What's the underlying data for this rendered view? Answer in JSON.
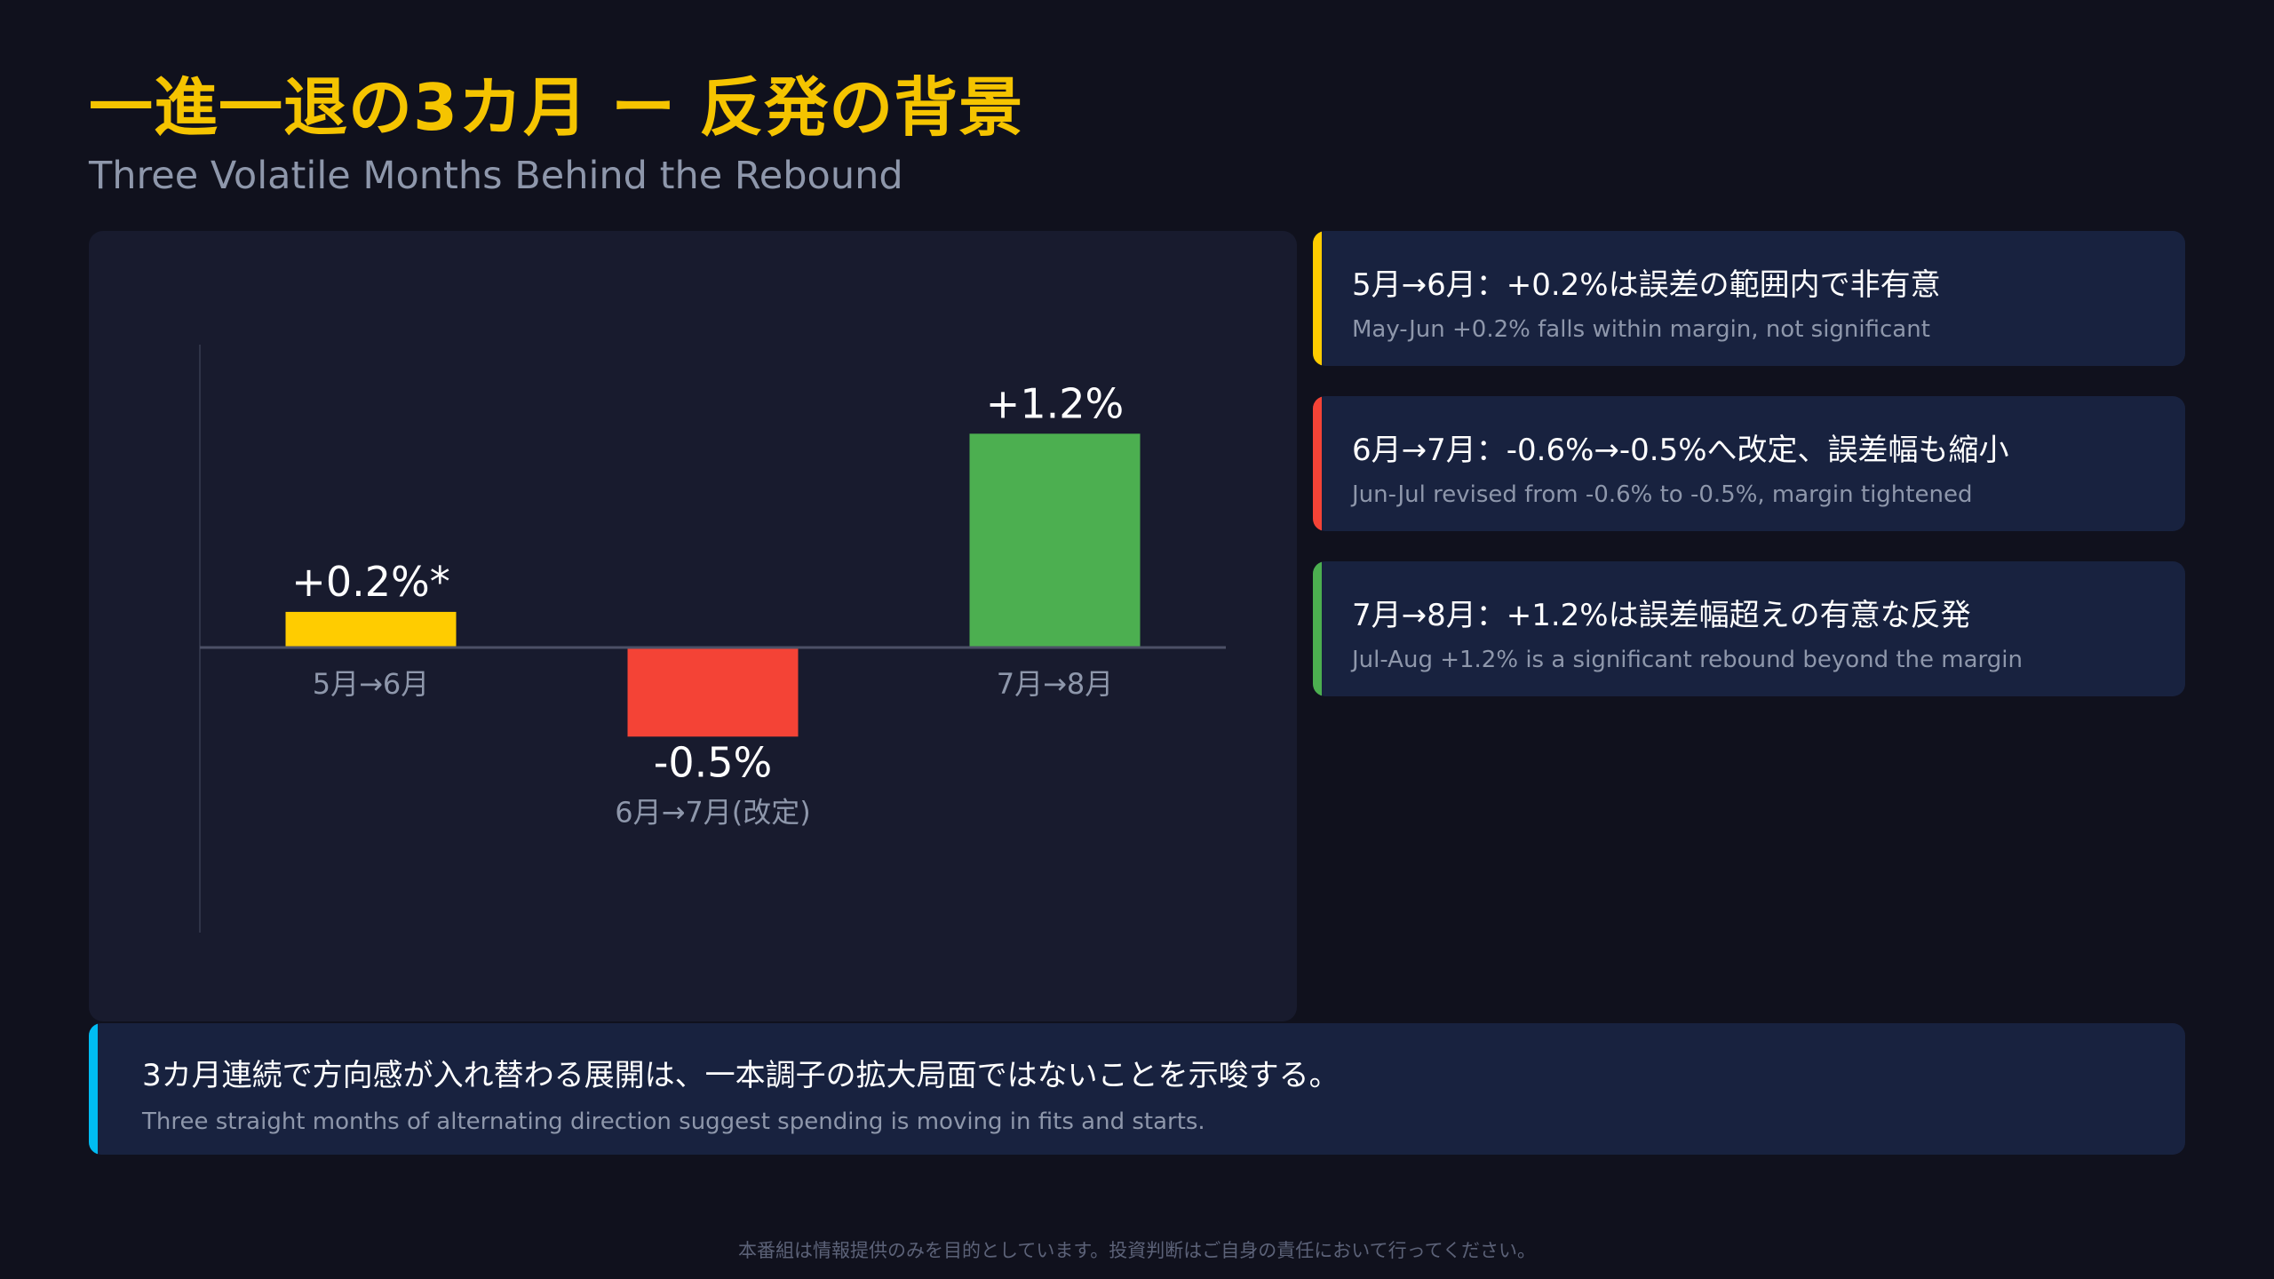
{
  "title": "一進一退の3カ月 ー 反発の背景",
  "subtitle": "Three Volatile Months Behind the Rebound",
  "chart_data": {
    "type": "bar",
    "categories": [
      "5月→6月",
      "6月→7月(改定)",
      "7月→8月"
    ],
    "values": [
      0.2,
      -0.5,
      1.2
    ],
    "data_labels": [
      "+0.2%*",
      "-0.5%",
      "+1.2%"
    ],
    "colors": [
      "#ffcc00",
      "#f44336",
      "#4caf50"
    ],
    "ylim": [
      -1.6,
      1.7
    ],
    "grid": false
  },
  "notes": [
    {
      "jp": "5月→6月：+0.2%は誤差の範囲内で非有意",
      "en": "May-Jun +0.2% falls within margin, not significant",
      "color": "#ffcc00"
    },
    {
      "jp": "6月→7月：-0.6%→-0.5%へ改定、誤差幅も縮小",
      "en": "Jun-Jul revised from -0.6% to -0.5%, margin tightened",
      "color": "#f44336"
    },
    {
      "jp": "7月→8月：+1.2%は誤差幅超えの有意な反発",
      "en": "Jul-Aug +1.2% is a significant rebound beyond the margin",
      "color": "#4caf50"
    }
  ],
  "summary": {
    "jp": "3カ月連続で方向感が入れ替わる展開は、一本調子の拡大局面ではないことを示唆する。",
    "en": "Three straight months of alternating direction suggest spending is moving in fits and starts.",
    "color": "#00bcf2"
  },
  "disclaimer": "本番組は情報提供のみを目的としています。投資判断はご自身の責任において行ってください。"
}
